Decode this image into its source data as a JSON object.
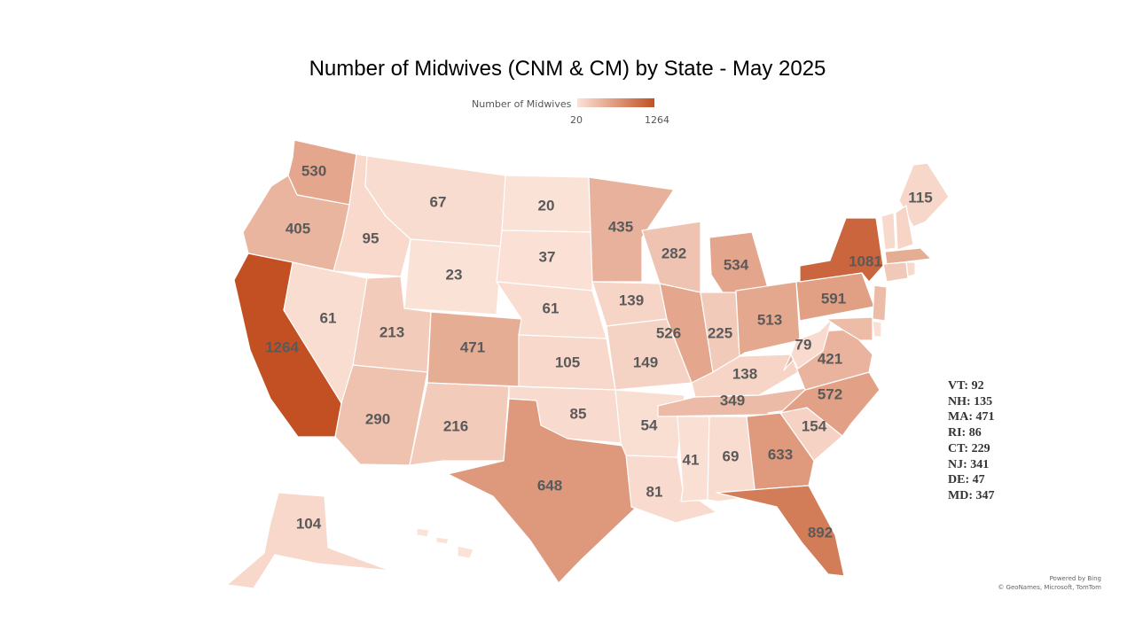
{
  "title": "Number of Midwives (CNM & CM) by State - May 2025",
  "legend": {
    "label": "Number of Midwives",
    "min": "20",
    "max": "1264",
    "color_min": "#fbe2d7",
    "color_max": "#c25022"
  },
  "states": [
    {
      "id": "WA",
      "value": "530"
    },
    {
      "id": "OR",
      "value": "405"
    },
    {
      "id": "CA",
      "value": "1264"
    },
    {
      "id": "NV",
      "value": "61"
    },
    {
      "id": "ID",
      "value": "95"
    },
    {
      "id": "MT",
      "value": "67"
    },
    {
      "id": "WY",
      "value": "23"
    },
    {
      "id": "UT",
      "value": "213"
    },
    {
      "id": "AZ",
      "value": "290"
    },
    {
      "id": "CO",
      "value": "471"
    },
    {
      "id": "NM",
      "value": "216"
    },
    {
      "id": "ND",
      "value": "20"
    },
    {
      "id": "SD",
      "value": "37"
    },
    {
      "id": "NE",
      "value": "61"
    },
    {
      "id": "KS",
      "value": "105"
    },
    {
      "id": "OK",
      "value": "85"
    },
    {
      "id": "TX",
      "value": "648"
    },
    {
      "id": "MN",
      "value": "435"
    },
    {
      "id": "IA",
      "value": "139"
    },
    {
      "id": "MO",
      "value": "149"
    },
    {
      "id": "AR",
      "value": "54"
    },
    {
      "id": "LA",
      "value": "81"
    },
    {
      "id": "WI",
      "value": "282"
    },
    {
      "id": "IL",
      "value": "526"
    },
    {
      "id": "MI",
      "value": "534"
    },
    {
      "id": "IN",
      "value": "225"
    },
    {
      "id": "OH",
      "value": "513"
    },
    {
      "id": "KY",
      "value": "138"
    },
    {
      "id": "TN",
      "value": "349"
    },
    {
      "id": "MS",
      "value": "41"
    },
    {
      "id": "AL",
      "value": "69"
    },
    {
      "id": "GA",
      "value": "633"
    },
    {
      "id": "FL",
      "value": "892"
    },
    {
      "id": "SC",
      "value": "154"
    },
    {
      "id": "NC",
      "value": "572"
    },
    {
      "id": "VA",
      "value": "421"
    },
    {
      "id": "WV",
      "value": "79"
    },
    {
      "id": "PA",
      "value": "591"
    },
    {
      "id": "NY",
      "value": "1081"
    },
    {
      "id": "ME",
      "value": "115"
    },
    {
      "id": "AK",
      "value": "104"
    }
  ],
  "small_states": [
    {
      "label": "VT: 92"
    },
    {
      "label": "NH: 135"
    },
    {
      "label": "MA: 471"
    },
    {
      "label": "RI: 86"
    },
    {
      "label": "CT: 229"
    },
    {
      "label": "NJ: 341"
    },
    {
      "label": "DE: 47"
    },
    {
      "label": "MD: 347"
    }
  ],
  "credits": {
    "line1": "Powered by Bing",
    "line2": "© GeoNames, Microsoft, TomTom"
  }
}
